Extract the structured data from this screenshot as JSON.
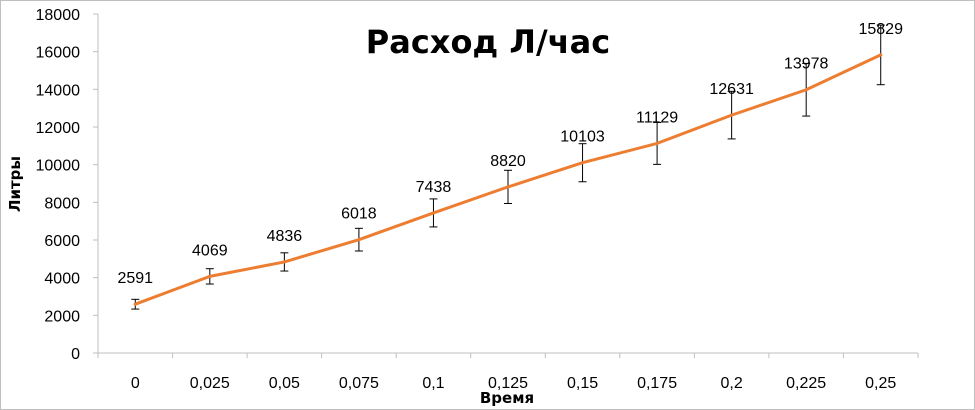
{
  "chart_data": {
    "type": "line",
    "title": "Расход Л/час",
    "xlabel": "Время",
    "ylabel": "Литры",
    "categories": [
      "0",
      "0,025",
      "0,05",
      "0,075",
      "0,1",
      "0,125",
      "0,15",
      "0,175",
      "0,2",
      "0,225",
      "0,25"
    ],
    "series": [
      {
        "values": [
          2591,
          4069,
          4836,
          6018,
          7438,
          8820,
          10103,
          11129,
          12631,
          13978,
          15829
        ],
        "data_labels": [
          "2591",
          "4069",
          "4836",
          "6018",
          "7438",
          "8820",
          "10103",
          "11129",
          "12631",
          "13978",
          "15829"
        ],
        "color": "#ED7D31",
        "error_bars": {
          "type": "percent",
          "amount": 0.1
        }
      }
    ],
    "ylim": [
      0,
      18000
    ],
    "yticks": [
      0,
      2000,
      4000,
      6000,
      8000,
      10000,
      12000,
      14000,
      16000,
      18000
    ],
    "ytick_labels": [
      "0",
      "2000",
      "4000",
      "6000",
      "8000",
      "10000",
      "12000",
      "14000",
      "16000",
      "18000"
    ],
    "grid": false,
    "legend": "none"
  }
}
